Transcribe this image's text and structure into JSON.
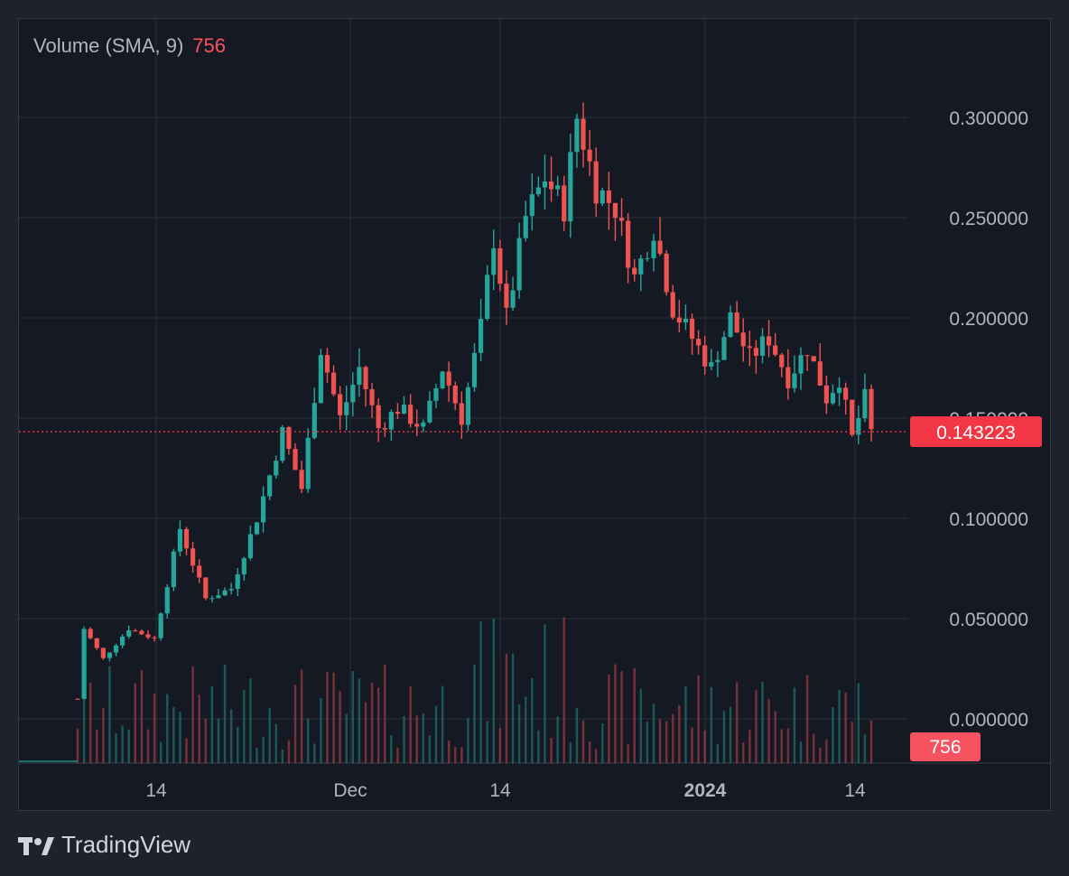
{
  "legend": {
    "label": "Volume (SMA, 9)",
    "value": "756"
  },
  "branding": {
    "name": "TradingView"
  },
  "colors": {
    "up": "#26a69a",
    "down": "#ef5350",
    "price_tag": "#f23645",
    "vol_tag": "#f7525f"
  },
  "chart_data": {
    "type": "candlestick",
    "y_axis_ticks": [
      "0.300000",
      "0.250000",
      "0.200000",
      "0.150000",
      "0.100000",
      "0.050000",
      "0.000000"
    ],
    "x_axis_ticks": [
      "14",
      "Dec",
      "14",
      "2024",
      "14"
    ],
    "ylim": [
      0.0,
      0.3
    ],
    "last_price": 0.143223,
    "last_price_label": "0.143223",
    "volume_sma_label": "756",
    "grid": true,
    "price_path": [
      [
        0,
        0.01
      ],
      [
        1,
        0.045
      ],
      [
        4,
        0.03
      ],
      [
        8,
        0.045
      ],
      [
        12,
        0.04
      ],
      [
        16,
        0.095
      ],
      [
        20,
        0.06
      ],
      [
        24,
        0.065
      ],
      [
        28,
        0.1
      ],
      [
        32,
        0.143
      ],
      [
        35,
        0.115
      ],
      [
        38,
        0.185
      ],
      [
        41,
        0.15
      ],
      [
        44,
        0.175
      ],
      [
        47,
        0.145
      ],
      [
        50,
        0.155
      ],
      [
        54,
        0.145
      ],
      [
        57,
        0.175
      ],
      [
        60,
        0.15
      ],
      [
        63,
        0.195
      ],
      [
        65,
        0.24
      ],
      [
        67,
        0.2
      ],
      [
        70,
        0.25
      ],
      [
        73,
        0.27
      ],
      [
        76,
        0.255
      ],
      [
        78,
        0.3
      ],
      [
        81,
        0.265
      ],
      [
        84,
        0.255
      ],
      [
        87,
        0.22
      ],
      [
        90,
        0.245
      ],
      [
        93,
        0.205
      ],
      [
        96,
        0.19
      ],
      [
        99,
        0.175
      ],
      [
        102,
        0.2
      ],
      [
        105,
        0.18
      ],
      [
        108,
        0.19
      ],
      [
        111,
        0.17
      ],
      [
        114,
        0.185
      ],
      [
        117,
        0.16
      ],
      [
        119,
        0.17
      ],
      [
        121,
        0.14
      ],
      [
        123,
        0.16
      ],
      [
        124,
        0.143
      ]
    ]
  }
}
